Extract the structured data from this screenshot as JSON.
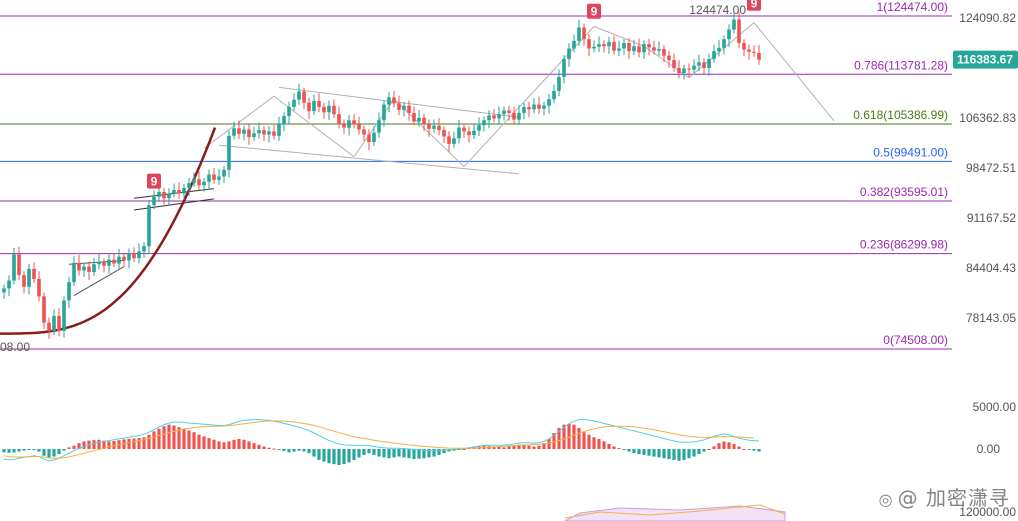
{
  "colors": {
    "up": "#26a69a",
    "down": "#ef5350",
    "fib_top": "#9c27b0",
    "fib_green": "#4a7a14",
    "fib_blue": "#2962ff",
    "fib_grey": "#607d8b",
    "curve": "#8b1a1a",
    "trend": "#b0b0b0",
    "dif": "#4dd0e1",
    "dea": "#f5b041",
    "price_tag_bg": "#26a69a",
    "marker_bg": "#e0435b"
  },
  "watermark": {
    "icon": "weibo-icon",
    "text": "@ 加密潇寻"
  },
  "chart_data": {
    "type": "candlestick",
    "y_axis": {
      "ticks": [
        "124090.82",
        "106362.83",
        "98472.51",
        "91167.52",
        "84404.43",
        "78143.05"
      ],
      "tick_values": [
        124090.82,
        106362.83,
        98472.51,
        91167.52,
        84404.43,
        78143.05
      ],
      "log_scale": true
    },
    "current_price": "116383.67",
    "current_value": 116383.67,
    "high_label": "124474.00",
    "low_label": "08.00",
    "fib_levels": [
      {
        "ratio": 1,
        "value": 124474.0,
        "label": "1(124474.00)"
      },
      {
        "ratio": 0.786,
        "value": 113781.28,
        "label": "0.786(113781.28)"
      },
      {
        "ratio": 0.618,
        "value": 105386.99,
        "label": "0.618(105386.99)"
      },
      {
        "ratio": 0.5,
        "value": 99491.0,
        "label": "0.5(99491.00)"
      },
      {
        "ratio": 0.382,
        "value": 93595.01,
        "label": "0.382(93595.01)"
      },
      {
        "ratio": 0.236,
        "value": 86299.98,
        "label": "0.236(86299.98)"
      },
      {
        "ratio": 0,
        "value": 74508.0,
        "label": "0(74508.00)"
      }
    ],
    "closes": [
      81800,
      82800,
      86200,
      83500,
      82000,
      84300,
      83000,
      80800,
      77600,
      76600,
      78400,
      76600,
      80300,
      82600,
      85100,
      84100,
      84600,
      83900,
      84900,
      85200,
      84700,
      85500,
      85000,
      85900,
      85400,
      86300,
      85700,
      86600,
      87300,
      93000,
      94200,
      94900,
      94000,
      94700,
      95200,
      94700,
      95500,
      96200,
      96800,
      95900,
      96400,
      97500,
      96700,
      97200,
      98200,
      103500,
      104700,
      103800,
      104500,
      103300,
      103900,
      104400,
      103700,
      104200,
      103500,
      105300,
      106700,
      108200,
      109400,
      110800,
      108900,
      107500,
      109200,
      108200,
      107300,
      108400,
      107000,
      105500,
      104800,
      106000,
      105300,
      104500,
      103700,
      102500,
      104000,
      106000,
      108600,
      109800,
      108800,
      107700,
      108400,
      107200,
      105800,
      106400,
      105300,
      104600,
      105100,
      104400,
      103400,
      102200,
      103100,
      104800,
      104200,
      103600,
      104300,
      105200,
      106000,
      106800,
      106300,
      107000,
      107600,
      107200,
      106100,
      107200,
      108200,
      107800,
      108600,
      107900,
      108400,
      109500,
      110900,
      113300,
      116500,
      118400,
      119800,
      122300,
      120100,
      118400,
      118700,
      119200,
      118800,
      119600,
      118000,
      118400,
      119400,
      117900,
      118800,
      117700,
      119200,
      118600,
      118000,
      118300,
      117100,
      116300,
      114900,
      114000,
      114800,
      114600,
      115300,
      115900,
      114900,
      116500,
      117900,
      118500,
      120100,
      121900,
      123800,
      119400,
      118200,
      117800,
      117600,
      116380
    ],
    "macd_axis": {
      "ticks": [
        "5000.00",
        "0.00",
        "120000.00"
      ],
      "tick_values": [
        5000,
        0
      ]
    },
    "macd_hist": [
      -400,
      -450,
      -420,
      -300,
      -200,
      -100,
      -50,
      -300,
      -800,
      -1100,
      -900,
      -600,
      -200,
      200,
      400,
      700,
      900,
      1000,
      1050,
      1100,
      1000,
      900,
      950,
      1050,
      1150,
      1200,
      1250,
      1300,
      1400,
      1700,
      2100,
      2400,
      2700,
      2900,
      2800,
      2600,
      2400,
      2200,
      2000,
      1700,
      1500,
      1300,
      1100,
      900,
      800,
      900,
      1100,
      1200,
      1100,
      900,
      700,
      500,
      300,
      150,
      50,
      -100,
      -250,
      -400,
      -300,
      -200,
      -300,
      -500,
      -900,
      -1300,
      -1500,
      -1700,
      -1800,
      -1900,
      -1800,
      -1600,
      -1300,
      -1000,
      -700,
      -500,
      -700,
      -900,
      -1000,
      -1100,
      -1000,
      -900,
      -1000,
      -1100,
      -1200,
      -1150,
      -1100,
      -1000,
      -900,
      -700,
      -500,
      -300,
      -200,
      -100,
      0,
      150,
      300,
      350,
      400,
      350,
      300,
      250,
      200,
      300,
      400,
      500,
      450,
      400,
      300,
      400,
      700,
      1200,
      1900,
      2500,
      2900,
      3000,
      2900,
      2500,
      2000,
      1700,
      1400,
      1200,
      900,
      600,
      300,
      100,
      -100,
      -300,
      -500,
      -600,
      -700,
      -800,
      -900,
      -1000,
      -1100,
      -1200,
      -1300,
      -1400,
      -1300,
      -1100,
      -900,
      -600,
      -300,
      0,
      300,
      700,
      900,
      800,
      600,
      300,
      0,
      -100,
      -200,
      -300
    ],
    "macd_dif": [
      -1200,
      -1300,
      -1250,
      -1100,
      -1000,
      -900,
      -800,
      -900,
      -1200,
      -1400,
      -1300,
      -1100,
      -800,
      -500,
      -200,
      100,
      300,
      500,
      650,
      800,
      900,
      1000,
      1100,
      1200,
      1300,
      1400,
      1500,
      1600,
      1750,
      2000,
      2300,
      2600,
      2900,
      3100,
      3200,
      3200,
      3150,
      3100,
      3050,
      3000,
      2950,
      2900,
      2850,
      2800,
      2800,
      2900,
      3100,
      3300,
      3400,
      3450,
      3500,
      3500,
      3450,
      3400,
      3300,
      3200,
      3050,
      2900,
      2750,
      2600,
      2400,
      2200,
      1900,
      1600,
      1300,
      1000,
      800,
      600,
      500,
      450,
      450,
      450,
      450,
      400,
      300,
      200,
      150,
      100,
      100,
      100,
      50,
      0,
      -50,
      -100,
      -150,
      -200,
      -200,
      -200,
      -150,
      -100,
      -50,
      0,
      50,
      150,
      250,
      350,
      400,
      450,
      450,
      450,
      450,
      500,
      600,
      700,
      750,
      750,
      700,
      750,
      900,
      1200,
      1600,
      2100,
      2600,
      3000,
      3300,
      3500,
      3500,
      3450,
      3350,
      3200,
      3050,
      2900,
      2750,
      2600,
      2450,
      2300,
      2150,
      2000,
      1850,
      1700,
      1550,
      1400,
      1250,
      1100,
      950,
      850,
      800,
      800,
      850,
      950,
      1100,
      1300,
      1500,
      1700,
      1800,
      1700,
      1500,
      1300,
      1150,
      1050,
      1000,
      950
    ],
    "macd_dea": [
      -800,
      -900,
      -950,
      -950,
      -950,
      -930,
      -900,
      -900,
      -950,
      -1050,
      -1100,
      -1100,
      -1050,
      -950,
      -800,
      -650,
      -500,
      -350,
      -200,
      -50,
      100,
      250,
      380,
      500,
      620,
      740,
      860,
      980,
      1100,
      1250,
      1400,
      1580,
      1760,
      1940,
      2100,
      2250,
      2380,
      2480,
      2560,
      2620,
      2660,
      2690,
      2710,
      2720,
      2740,
      2780,
      2840,
      2920,
      3000,
      3080,
      3160,
      3230,
      3290,
      3330,
      3350,
      3350,
      3320,
      3270,
      3210,
      3130,
      3040,
      2930,
      2800,
      2650,
      2480,
      2300,
      2120,
      1940,
      1780,
      1620,
      1480,
      1360,
      1250,
      1150,
      1050,
      950,
      860,
      780,
      700,
      630,
      560,
      490,
      430,
      370,
      310,
      260,
      210,
      170,
      140,
      110,
      90,
      80,
      80,
      90,
      110,
      140,
      170,
      210,
      250,
      290,
      320,
      360,
      400,
      440,
      480,
      510,
      530,
      560,
      610,
      700,
      830,
      1000,
      1200,
      1420,
      1650,
      1880,
      2080,
      2260,
      2410,
      2530,
      2620,
      2680,
      2710,
      2720,
      2710,
      2680,
      2630,
      2560,
      2480,
      2390,
      2290,
      2180,
      2060,
      1940,
      1820,
      1710,
      1610,
      1520,
      1450,
      1400,
      1380,
      1390,
      1420,
      1460,
      1480,
      1480,
      1460,
      1430,
      1390,
      1350,
      1310
    ]
  }
}
